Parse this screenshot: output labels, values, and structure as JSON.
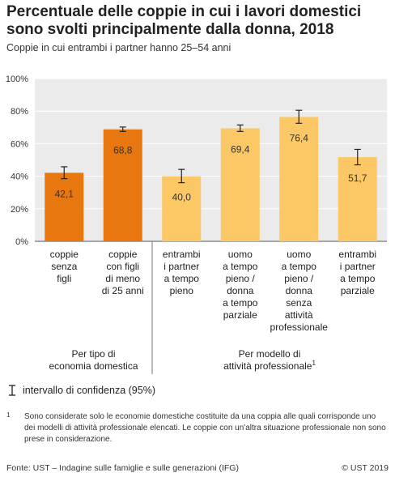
{
  "title": "Percentuale delle coppie in cui i lavori domestici sono svolti principalmente dalla donna, 2018",
  "subtitle": "Coppie in cui entrambi i partner hanno 25–54 anni",
  "chart_data": {
    "type": "bar",
    "ylim": [
      0,
      100
    ],
    "yticks": [
      "0%",
      "20%",
      "40%",
      "60%",
      "80%",
      "100%"
    ],
    "ytick_values": [
      0,
      20,
      40,
      60,
      80,
      100
    ],
    "grid": true,
    "categories": [
      [
        "coppie",
        "senza",
        "figli"
      ],
      [
        "coppie",
        "con figli",
        "di meno",
        "di 25 anni"
      ],
      [
        "entrambi",
        "i partner",
        "a tempo",
        "pieno"
      ],
      [
        "uomo",
        "a tempo",
        "pieno /",
        "donna",
        "a tempo",
        "parziale"
      ],
      [
        "uomo",
        "a tempo",
        "pieno /",
        "donna",
        "senza",
        "attività",
        "professionale"
      ],
      [
        "entrambi",
        "i partner",
        "a tempo",
        "parziale"
      ]
    ],
    "values": [
      42.1,
      68.8,
      40.0,
      69.4,
      76.4,
      51.7
    ],
    "value_labels": [
      "42,1",
      "68,8",
      "40,0",
      "69,4",
      "76,4",
      "51,7"
    ],
    "ci_low": [
      38.5,
      67.5,
      36.0,
      67.5,
      72.5,
      47.0
    ],
    "ci_high": [
      45.8,
      70.2,
      44.2,
      71.5,
      80.5,
      56.5
    ],
    "group_of_bar": [
      0,
      0,
      1,
      1,
      1,
      1
    ],
    "groups": [
      {
        "label_lines": [
          "Per tipo di",
          "economia domestica"
        ],
        "color": "#e8770f",
        "footnote_mark": ""
      },
      {
        "label_lines": [
          "Per modello di",
          "attività professionale"
        ],
        "color": "#fbc865",
        "footnote_mark": "1"
      }
    ]
  },
  "legend": {
    "label": "intervallo di confidenza (95%)"
  },
  "footnote": {
    "mark": "1",
    "text": "Sono considerate solo le economie domestiche costituite da una coppia alle quali corrisponde uno dei modelli di attività professionale elencati. Le coppie con un'altra situazione professionale non sono prese in considerazione."
  },
  "source": "Fonte: UST – Indagine sulle famiglie e sulle generazioni (IFG)",
  "copyright": "© UST 2019",
  "colors": {
    "plot_bg": "#ebebeb",
    "grid": "#ffffff",
    "axis_text": "#333333"
  }
}
